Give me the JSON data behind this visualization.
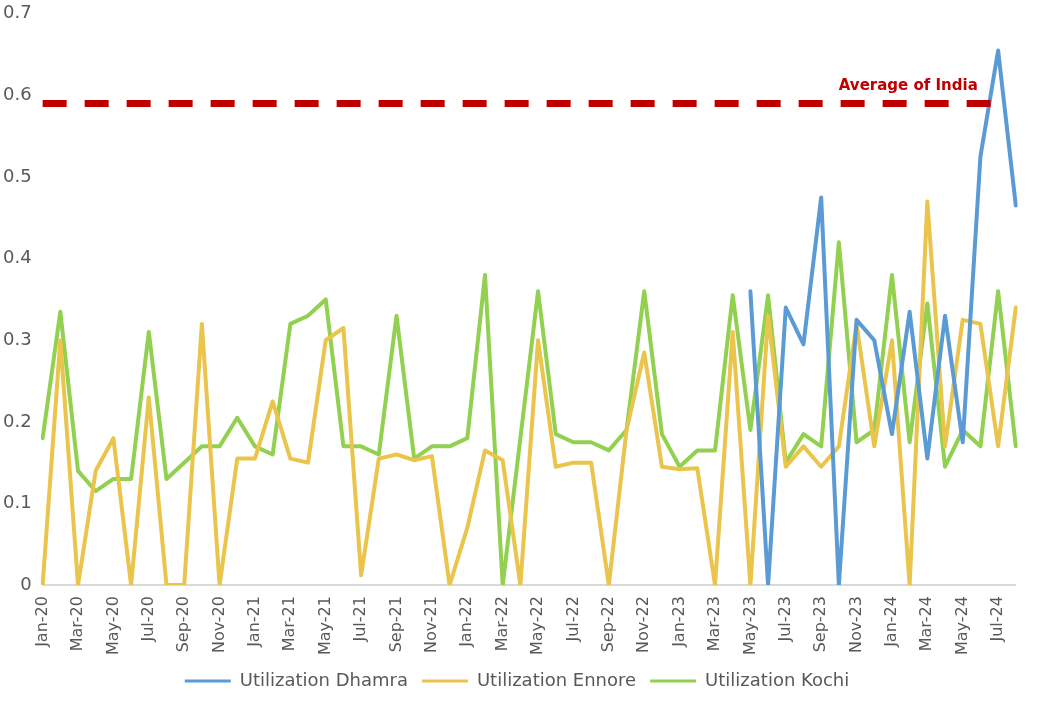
{
  "chart_data": {
    "type": "line",
    "categories": [
      "Jan-20",
      null,
      "Mar-20",
      null,
      "May-20",
      null,
      "Jul-20",
      null,
      "Sep-20",
      null,
      "Nov-20",
      null,
      "Jan-21",
      null,
      "Mar-21",
      null,
      "May-21",
      null,
      "Jul-21",
      null,
      "Sep-21",
      null,
      "Nov-21",
      null,
      "Jan-22",
      null,
      "Mar-22",
      null,
      "May-22",
      null,
      "Jul-22",
      null,
      "Sep-22",
      null,
      "Nov-22",
      null,
      "Jan-23",
      null,
      "Mar-23",
      null,
      "May-23",
      null,
      "Jul-23",
      null,
      "Sep-23",
      null,
      "Nov-23",
      null,
      "Jan-24",
      null,
      "Mar-24",
      null,
      "May-24",
      null,
      "Jul-24",
      null
    ],
    "series": [
      {
        "name": "Utilization Dhamra",
        "color": "#5b9bd5",
        "values": [
          null,
          null,
          null,
          null,
          null,
          null,
          null,
          null,
          null,
          null,
          null,
          null,
          null,
          null,
          null,
          null,
          null,
          null,
          null,
          null,
          null,
          null,
          null,
          null,
          null,
          null,
          null,
          null,
          null,
          null,
          null,
          null,
          null,
          null,
          null,
          null,
          null,
          null,
          null,
          null,
          0.36,
          0,
          0.34,
          0.295,
          0.475,
          0,
          0.325,
          0.3,
          0.185,
          0.335,
          0.155,
          0.33,
          0.175,
          0.525,
          0.655,
          0.465
        ]
      },
      {
        "name": "Utilization Ennore",
        "color": "#eac44b",
        "values": [
          0,
          0.3,
          0,
          0.14,
          0.18,
          0,
          0.23,
          0,
          0,
          0.32,
          0,
          0.155,
          0.155,
          0.225,
          0.155,
          0.15,
          0.3,
          0.315,
          0.012,
          0.155,
          0.16,
          0.153,
          0.158,
          0,
          0.07,
          0.165,
          0.153,
          0,
          0.3,
          0.145,
          0.15,
          0.15,
          0,
          0.19,
          0.285,
          0.145,
          0.142,
          0.143,
          0,
          0.31,
          0,
          0.33,
          0.145,
          0.17,
          0.145,
          0.17,
          0.32,
          0.17,
          0.3,
          0,
          0.47,
          0.17,
          0.325,
          0.32,
          0.17,
          0.34
        ]
      },
      {
        "name": "Utilization Kochi",
        "color": "#92d050",
        "values": [
          0.18,
          0.335,
          0.14,
          0.115,
          0.13,
          0.13,
          0.31,
          0.13,
          0.15,
          0.17,
          0.17,
          0.205,
          0.17,
          0.16,
          0.32,
          0.33,
          0.35,
          0.17,
          0.17,
          0.16,
          0.33,
          0.155,
          0.17,
          0.17,
          0.18,
          0.38,
          0,
          0.18,
          0.36,
          0.185,
          0.175,
          0.175,
          0.165,
          0.19,
          0.36,
          0.185,
          0.145,
          0.165,
          0.165,
          0.355,
          0.19,
          0.355,
          0.15,
          0.185,
          0.17,
          0.42,
          0.175,
          0.19,
          0.38,
          0.175,
          0.345,
          0.145,
          0.19,
          0.17,
          0.36,
          0.17
        ]
      }
    ],
    "ylim": [
      0,
      0.7
    ],
    "yticks": [
      0,
      0.1,
      0.2,
      0.3,
      0.4,
      0.5,
      0.6,
      0.7
    ],
    "ref_lines": [
      {
        "axis": "y",
        "value": 0.59,
        "label": "Average of India",
        "color": "#c00000",
        "line_style": "dashed"
      }
    ],
    "grid": false,
    "legend": "bottom",
    "marker": "none",
    "line_style": "solid"
  }
}
